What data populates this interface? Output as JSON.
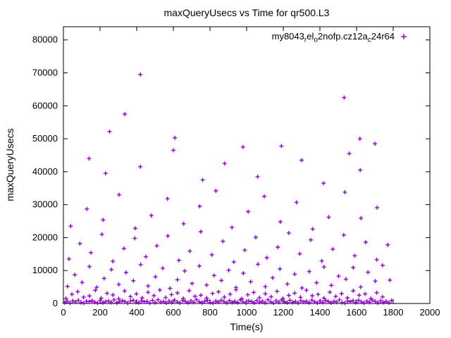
{
  "title": "maxQueryUsecs vs Time for qr500.L3",
  "x_label": "Time(s)",
  "y_label": "maxQueryUsecs",
  "legend": {
    "label_plain": "my8043_rel_o2nofp.cz12a_c24r64",
    "segments": [
      {
        "t": "my8043"
      },
      {
        "t": "r",
        "sub": true
      },
      {
        "t": "el"
      },
      {
        "t": "o",
        "sub": true
      },
      {
        "t": "2nofp.cz12a"
      },
      {
        "t": "c",
        "sub": true
      },
      {
        "t": "24r64"
      }
    ]
  },
  "chart_data": {
    "type": "scatter",
    "title": "maxQueryUsecs vs Time for qr500.L3",
    "xlabel": "Time(s)",
    "ylabel": "maxQueryUsecs",
    "xlim": [
      0,
      2000
    ],
    "ylim": [
      0,
      80000
    ],
    "ylim_draw": [
      0,
      84000
    ],
    "xticks": [
      0,
      200,
      400,
      600,
      800,
      1000,
      1200,
      1400,
      1600,
      1800,
      2000
    ],
    "yticks": [
      0,
      10000,
      20000,
      30000,
      40000,
      50000,
      60000,
      70000,
      80000
    ],
    "grid": false,
    "legend_position": "top-right-inside",
    "marker": "plus",
    "color": "#9400d3",
    "series": [
      {
        "name": "my8043_rel_o2nofp.cz12a_c24r64",
        "points": [
          [
            6,
            250
          ],
          [
            21,
            640
          ],
          [
            36,
            180
          ],
          [
            51,
            820
          ],
          [
            66,
            450
          ],
          [
            81,
            990
          ],
          [
            96,
            310
          ],
          [
            111,
            120
          ],
          [
            126,
            700
          ],
          [
            141,
            530
          ],
          [
            156,
            860
          ],
          [
            171,
            400
          ],
          [
            186,
            150
          ],
          [
            201,
            950
          ],
          [
            216,
            280
          ],
          [
            231,
            620
          ],
          [
            246,
            760
          ],
          [
            261,
            340
          ],
          [
            276,
            1080
          ],
          [
            291,
            210
          ],
          [
            306,
            470
          ],
          [
            321,
            890
          ],
          [
            336,
            560
          ],
          [
            351,
            130
          ],
          [
            366,
            720
          ],
          [
            381,
            980
          ],
          [
            396,
            380
          ],
          [
            411,
            240
          ],
          [
            426,
            840
          ],
          [
            441,
            510
          ],
          [
            456,
            660
          ],
          [
            471,
            160
          ],
          [
            486,
            930
          ],
          [
            501,
            290
          ],
          [
            516,
            1120
          ],
          [
            531,
            430
          ],
          [
            546,
            580
          ],
          [
            561,
            200
          ],
          [
            576,
            770
          ],
          [
            591,
            350
          ],
          [
            606,
            1040
          ],
          [
            621,
            480
          ],
          [
            636,
            140
          ],
          [
            651,
            900
          ],
          [
            666,
            610
          ],
          [
            681,
            260
          ],
          [
            696,
            820
          ],
          [
            711,
            370
          ],
          [
            726,
            1150
          ],
          [
            741,
            520
          ],
          [
            756,
            230
          ],
          [
            771,
            680
          ],
          [
            786,
            940
          ],
          [
            801,
            310
          ],
          [
            816,
            170
          ],
          [
            831,
            750
          ],
          [
            846,
            420
          ],
          [
            861,
            1010
          ],
          [
            876,
            550
          ],
          [
            891,
            190
          ],
          [
            906,
            860
          ],
          [
            921,
            330
          ],
          [
            936,
            640
          ],
          [
            951,
            270
          ],
          [
            966,
            1090
          ],
          [
            981,
            460
          ],
          [
            996,
            120
          ],
          [
            1011,
            790
          ],
          [
            1026,
            580
          ],
          [
            1041,
            240
          ],
          [
            1056,
            910
          ],
          [
            1071,
            360
          ],
          [
            1086,
            700
          ],
          [
            1101,
            210
          ],
          [
            1116,
            1130
          ],
          [
            1131,
            490
          ],
          [
            1146,
            150
          ],
          [
            1161,
            830
          ],
          [
            1176,
            390
          ],
          [
            1191,
            1060
          ],
          [
            1206,
            540
          ],
          [
            1221,
            260
          ],
          [
            1236,
            970
          ],
          [
            1251,
            320
          ],
          [
            1266,
            620
          ],
          [
            1281,
            180
          ],
          [
            1296,
            880
          ],
          [
            1311,
            440
          ],
          [
            1326,
            730
          ],
          [
            1341,
            280
          ],
          [
            1356,
            1020
          ],
          [
            1371,
            500
          ],
          [
            1386,
            160
          ],
          [
            1401,
            800
          ],
          [
            1416,
            350
          ],
          [
            1431,
            950
          ],
          [
            1446,
            570
          ],
          [
            1461,
            220
          ],
          [
            1476,
            690
          ],
          [
            1491,
            410
          ],
          [
            1506,
            1110
          ],
          [
            1521,
            300
          ],
          [
            1536,
            130
          ],
          [
            1551,
            760
          ],
          [
            1566,
            530
          ],
          [
            1581,
            870
          ],
          [
            1596,
            250
          ],
          [
            1611,
            990
          ],
          [
            1626,
            460
          ],
          [
            1641,
            140
          ],
          [
            1656,
            720
          ],
          [
            1671,
            380
          ],
          [
            1686,
            1050
          ],
          [
            1701,
            590
          ],
          [
            1716,
            200
          ],
          [
            1731,
            840
          ],
          [
            1746,
            310
          ],
          [
            1761,
            660
          ],
          [
            1776,
            230
          ],
          [
            1791,
            920
          ],
          [
            14,
            1500
          ],
          [
            46,
            2800
          ],
          [
            78,
            3600
          ],
          [
            110,
            1900
          ],
          [
            142,
            2300
          ],
          [
            174,
            4000
          ],
          [
            206,
            1600
          ],
          [
            238,
            3100
          ],
          [
            270,
            2600
          ],
          [
            302,
            1400
          ],
          [
            334,
            3800
          ],
          [
            366,
            2100
          ],
          [
            398,
            2900
          ],
          [
            430,
            1700
          ],
          [
            462,
            3400
          ],
          [
            494,
            2400
          ],
          [
            526,
            4100
          ],
          [
            558,
            1800
          ],
          [
            590,
            2700
          ],
          [
            622,
            3200
          ],
          [
            654,
            1500
          ],
          [
            686,
            3900
          ],
          [
            718,
            2200
          ],
          [
            750,
            2500
          ],
          [
            782,
            1650
          ],
          [
            814,
            3050
          ],
          [
            846,
            3550
          ],
          [
            878,
            1950
          ],
          [
            910,
            2850
          ],
          [
            942,
            4150
          ],
          [
            974,
            1450
          ],
          [
            1006,
            2650
          ],
          [
            1038,
            3350
          ],
          [
            1070,
            1750
          ],
          [
            1102,
            2950
          ],
          [
            1134,
            2050
          ],
          [
            1166,
            3700
          ],
          [
            1198,
            1550
          ],
          [
            1230,
            2450
          ],
          [
            1262,
            3150
          ],
          [
            1294,
            1850
          ],
          [
            1326,
            4050
          ],
          [
            1358,
            2350
          ],
          [
            1390,
            2750
          ],
          [
            1422,
            1600
          ],
          [
            1454,
            3450
          ],
          [
            1486,
            2150
          ],
          [
            1518,
            3000
          ],
          [
            1550,
            1700
          ],
          [
            1582,
            3850
          ],
          [
            1614,
            2500
          ],
          [
            1646,
            2900
          ],
          [
            1678,
            1500
          ],
          [
            1710,
            3250
          ],
          [
            1742,
            2000
          ],
          [
            22,
            5200
          ],
          [
            62,
            8700
          ],
          [
            102,
            6400
          ],
          [
            142,
            11200
          ],
          [
            182,
            4900
          ],
          [
            222,
            7600
          ],
          [
            262,
            10300
          ],
          [
            302,
            5800
          ],
          [
            342,
            9400
          ],
          [
            382,
            6900
          ],
          [
            422,
            11800
          ],
          [
            462,
            5300
          ],
          [
            502,
            8100
          ],
          [
            542,
            10700
          ],
          [
            582,
            4600
          ],
          [
            622,
            7200
          ],
          [
            662,
            9900
          ],
          [
            702,
            6100
          ],
          [
            742,
            11400
          ],
          [
            782,
            5600
          ],
          [
            822,
            8500
          ],
          [
            862,
            7000
          ],
          [
            902,
            10100
          ],
          [
            942,
            4800
          ],
          [
            982,
            9200
          ],
          [
            1022,
            6600
          ],
          [
            1062,
            11900
          ],
          [
            1102,
            5100
          ],
          [
            1142,
            7800
          ],
          [
            1182,
            10500
          ],
          [
            1222,
            5900
          ],
          [
            1262,
            8900
          ],
          [
            1302,
            4700
          ],
          [
            1342,
            9700
          ],
          [
            1382,
            6300
          ],
          [
            1422,
            11100
          ],
          [
            1462,
            5500
          ],
          [
            1502,
            8300
          ],
          [
            1542,
            7400
          ],
          [
            1582,
            10900
          ],
          [
            1622,
            5000
          ],
          [
            1662,
            9500
          ],
          [
            1702,
            6800
          ],
          [
            1742,
            11600
          ],
          [
            1782,
            7100
          ],
          [
            30,
            13500
          ],
          [
            90,
            18200
          ],
          [
            150,
            15400
          ],
          [
            210,
            21000
          ],
          [
            270,
            12800
          ],
          [
            330,
            16700
          ],
          [
            390,
            19800
          ],
          [
            450,
            14200
          ],
          [
            510,
            17500
          ],
          [
            570,
            20500
          ],
          [
            630,
            13100
          ],
          [
            690,
            15900
          ],
          [
            750,
            21800
          ],
          [
            810,
            14800
          ],
          [
            870,
            18900
          ],
          [
            930,
            12600
          ],
          [
            990,
            16200
          ],
          [
            1050,
            20100
          ],
          [
            1110,
            13900
          ],
          [
            1170,
            17100
          ],
          [
            1230,
            21400
          ],
          [
            1290,
            15100
          ],
          [
            1350,
            19300
          ],
          [
            1410,
            12900
          ],
          [
            1470,
            16500
          ],
          [
            1530,
            20800
          ],
          [
            1590,
            14500
          ],
          [
            1650,
            18600
          ],
          [
            1710,
            13300
          ],
          [
            1770,
            17800
          ],
          [
            40,
            23500
          ],
          [
            128,
            28700
          ],
          [
            216,
            25400
          ],
          [
            304,
            33000
          ],
          [
            392,
            22800
          ],
          [
            480,
            26700
          ],
          [
            568,
            31800
          ],
          [
            656,
            24200
          ],
          [
            744,
            29500
          ],
          [
            832,
            34200
          ],
          [
            920,
            23100
          ],
          [
            1008,
            27900
          ],
          [
            1096,
            32500
          ],
          [
            1184,
            24800
          ],
          [
            1272,
            30700
          ],
          [
            1360,
            22600
          ],
          [
            1448,
            26200
          ],
          [
            1536,
            33800
          ],
          [
            1624,
            25900
          ],
          [
            1712,
            29100
          ],
          [
            140,
            44000
          ],
          [
            230,
            39500
          ],
          [
            420,
            41500
          ],
          [
            600,
            46500
          ],
          [
            760,
            37500
          ],
          [
            880,
            42500
          ],
          [
            980,
            47500
          ],
          [
            1060,
            38500
          ],
          [
            1190,
            47800
          ],
          [
            1300,
            43500
          ],
          [
            1420,
            36500
          ],
          [
            1560,
            45500
          ],
          [
            1620,
            40500
          ],
          [
            1700,
            48500
          ],
          [
            420,
            69500
          ],
          [
            335,
            57500
          ],
          [
            1532,
            62500
          ],
          [
            252,
            52200
          ],
          [
            608,
            50300
          ],
          [
            1618,
            50000
          ]
        ]
      }
    ]
  }
}
